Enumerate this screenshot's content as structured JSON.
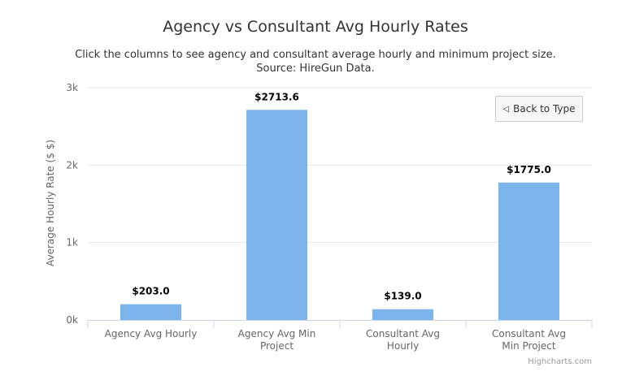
{
  "chart_data": {
    "type": "bar",
    "title": "Agency vs Consultant Avg Hourly Rates",
    "subtitle_lines": [
      "Click the columns to see agency and consultant average hourly and minimum project size.",
      "Source: HireGun Data."
    ],
    "ylabel": "Average Hourly Rate ($ $)",
    "xlabel": "",
    "ylim": [
      0,
      3000
    ],
    "yticks": [
      {
        "value": 0,
        "label": "0k"
      },
      {
        "value": 1000,
        "label": "1k"
      },
      {
        "value": 2000,
        "label": "2k"
      },
      {
        "value": 3000,
        "label": "3k"
      }
    ],
    "categories": [
      [
        "Agency Avg Hourly"
      ],
      [
        "Agency Avg Min",
        "Project"
      ],
      [
        "Consultant Avg",
        "Hourly"
      ],
      [
        "Consultant Avg",
        "Min Project"
      ]
    ],
    "values": [
      203.0,
      2713.6,
      139.0,
      1775.0
    ],
    "data_labels": [
      "$203.0",
      "$2713.6",
      "$139.0",
      "$1775.0"
    ],
    "bar_color": "#7cb5ec",
    "grid": true,
    "legend": "none"
  },
  "back_button": {
    "arrow": "◁",
    "label": "Back to Type"
  },
  "credits": "Highcharts.com"
}
